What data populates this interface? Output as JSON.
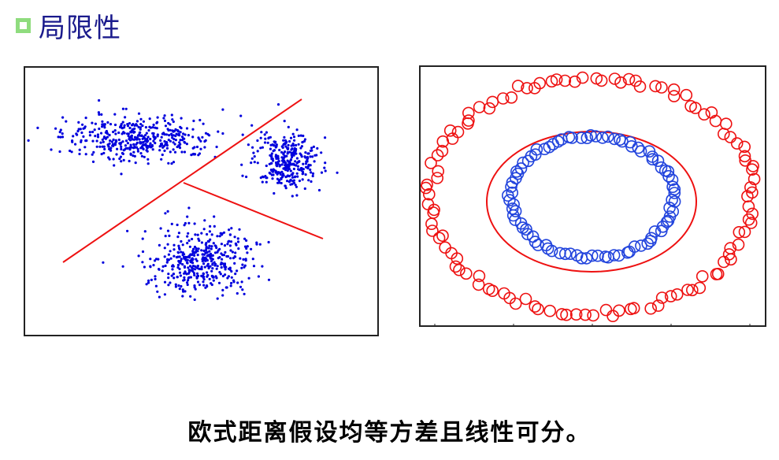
{
  "header": {
    "title": "局限性"
  },
  "caption": "欧式距离假设均等方差且线性可分。",
  "colors": {
    "blue": "#0000dd",
    "red": "#ee1111",
    "outer_ring": "#ee1111",
    "inner_ring": "#2244dd",
    "bullet": "#8fdc7e"
  },
  "chart_data": [
    {
      "type": "scatter",
      "title": "",
      "description": "three gaussian clusters separated by two red decision lines",
      "clusters": [
        {
          "name": "",
          "center": [
            175,
            175
          ],
          "spread": [
            48,
            14
          ],
          "count": 420
        },
        {
          "name": "",
          "center": [
            365,
            205
          ],
          "spread": [
            20,
            18
          ],
          "count": 320
        },
        {
          "name": "",
          "center": [
            255,
            330
          ],
          "spread": [
            33,
            21
          ],
          "count": 420
        }
      ],
      "lines": [
        {
          "from": [
            80,
            333
          ],
          "to": [
            383,
            126
          ]
        },
        {
          "from": [
            233,
            232
          ],
          "to": [
            410,
            303
          ]
        }
      ],
      "xlabel": "",
      "ylabel": "",
      "grid": false
    },
    {
      "type": "scatter",
      "title": "",
      "description": "two concentric rings of circle markers with elliptical boundary",
      "series": [
        {
          "name": "",
          "marker": "circle-open",
          "color": "#ee1111",
          "center": [
            751,
            248
          ],
          "radii": [
            205,
            150
          ],
          "count": 115
        },
        {
          "name": "",
          "marker": "circle-open",
          "color": "#2244dd",
          "center": [
            751,
            250
          ],
          "radii": [
            103,
            77
          ],
          "count": 90
        }
      ],
      "boundary": {
        "shape": "ellipse",
        "center": [
          751,
          256
        ],
        "radii": [
          133,
          89
        ],
        "color": "#ee1111"
      },
      "xlabel": "",
      "ylabel": "",
      "grid": false
    }
  ]
}
